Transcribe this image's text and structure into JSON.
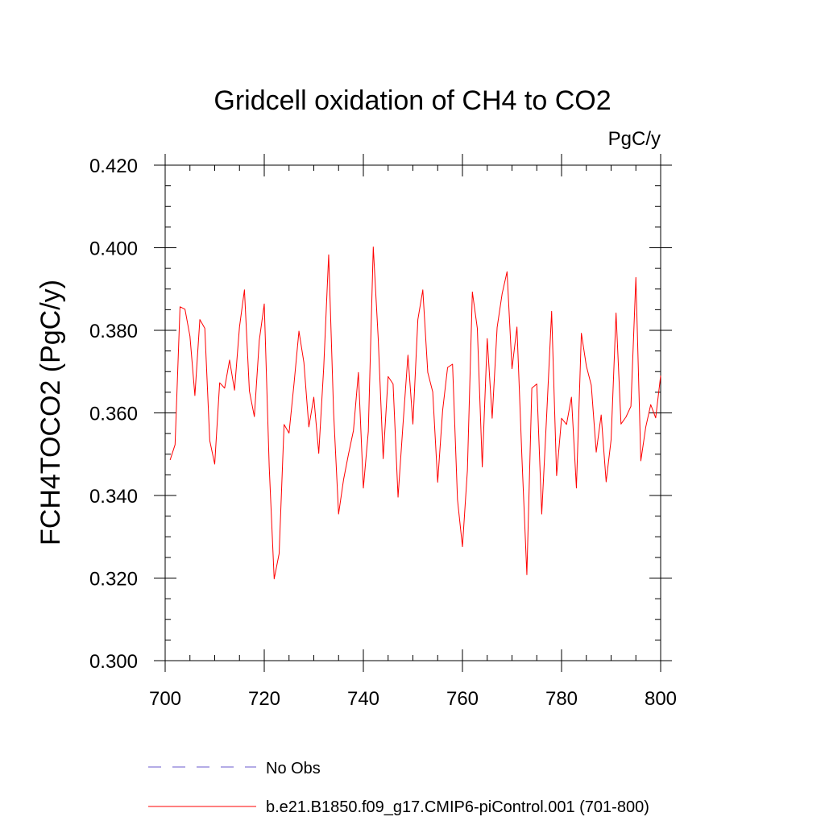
{
  "chart_data": {
    "type": "line",
    "title": "Gridcell oxidation of CH4 to CO2",
    "units_label": "PgC/y",
    "ylabel": "FCH4TOCO2  (PgC/y)",
    "xlabel": "",
    "xlim": [
      700,
      800
    ],
    "ylim": [
      0.3,
      0.42
    ],
    "x_ticks": [
      700,
      720,
      740,
      760,
      780,
      800
    ],
    "x_tick_labels": [
      "700",
      "720",
      "740",
      "760",
      "780",
      "800"
    ],
    "y_ticks": [
      0.3,
      0.32,
      0.34,
      0.36,
      0.38,
      0.4,
      0.42
    ],
    "y_tick_labels": [
      "0.300",
      "0.320",
      "0.340",
      "0.360",
      "0.380",
      "0.400",
      "0.420"
    ],
    "series": [
      {
        "name": "b.e21.B1850.f09_g17.CMIP6-piControl.001 (701-800)",
        "color": "#ff0000",
        "style": "solid",
        "x_start": 701,
        "values": [
          0.3486,
          0.3523,
          0.3857,
          0.3851,
          0.3786,
          0.3642,
          0.3826,
          0.3805,
          0.3533,
          0.3476,
          0.3673,
          0.366,
          0.3728,
          0.3655,
          0.3808,
          0.3898,
          0.3653,
          0.3591,
          0.3776,
          0.3864,
          0.347,
          0.3198,
          0.3259,
          0.3572,
          0.3551,
          0.367,
          0.3798,
          0.3722,
          0.3566,
          0.3638,
          0.3502,
          0.371,
          0.3983,
          0.36,
          0.3355,
          0.3438,
          0.35,
          0.3557,
          0.3698,
          0.3418,
          0.3555,
          0.4002,
          0.378,
          0.3489,
          0.3688,
          0.367,
          0.3396,
          0.3572,
          0.374,
          0.3573,
          0.3826,
          0.3898,
          0.3698,
          0.3651,
          0.3432,
          0.3606,
          0.371,
          0.3718,
          0.339,
          0.3276,
          0.3461,
          0.3893,
          0.3805,
          0.3469,
          0.378,
          0.3587,
          0.3807,
          0.3888,
          0.3942,
          0.3707,
          0.3808,
          0.3493,
          0.3208,
          0.366,
          0.367,
          0.3355,
          0.3595,
          0.3846,
          0.3448,
          0.3587,
          0.3572,
          0.3638,
          0.3418,
          0.3793,
          0.3714,
          0.3667,
          0.3505,
          0.3595,
          0.3433,
          0.3535,
          0.3842,
          0.3573,
          0.359,
          0.3616,
          0.3928,
          0.3484,
          0.3566,
          0.362,
          0.3588,
          0.369
        ]
      }
    ],
    "legend": [
      {
        "label": "No Obs",
        "color": "#6a5acd",
        "style": "dashed"
      },
      {
        "label": "b.e21.B1850.f09_g17.CMIP6-piControl.001 (701-800)",
        "color": "#ff0000",
        "style": "solid"
      }
    ],
    "grid": false
  }
}
